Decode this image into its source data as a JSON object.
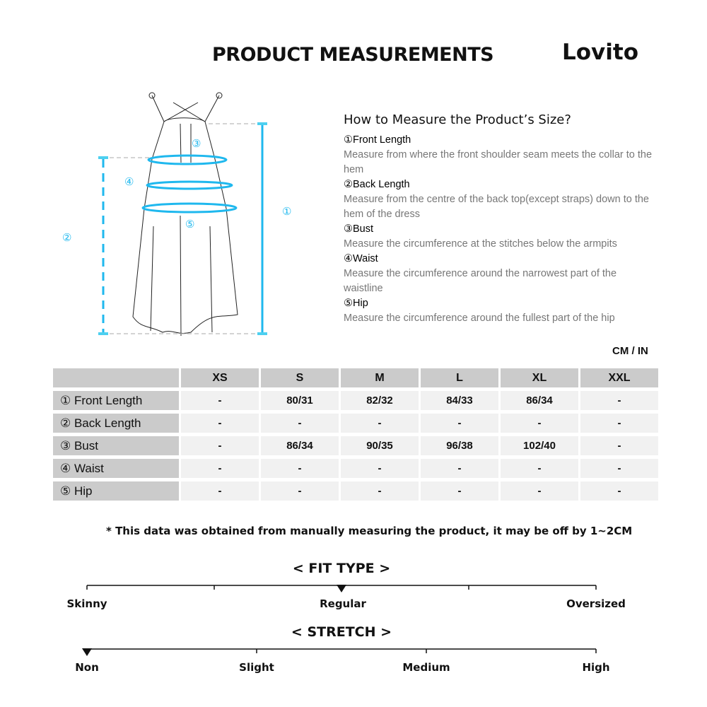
{
  "header": {
    "title": "PRODUCT MEASUREMENTS",
    "logo": "Lovito"
  },
  "diagram": {
    "markers": [
      "①",
      "②",
      "③",
      "④",
      "⑤"
    ],
    "accent": "#1fb8ee"
  },
  "guide": {
    "title": "How to Measure the Product’s Size?",
    "items": [
      {
        "name": "①Front Length",
        "desc": "Measure from where the front shoulder seam meets the collar to the hem"
      },
      {
        "name": "②Back Length",
        "desc": "Measure from the centre of the back top(except straps) down to the hem of the dress"
      },
      {
        "name": "③Bust",
        "desc": "Measure the circumference at the stitches below the armpits"
      },
      {
        "name": "④Waist",
        "desc": "Measure the circumference around the narrowest part of the waistline"
      },
      {
        "name": "⑤Hip",
        "desc": "Measure the circumference around the fullest part of the hip"
      }
    ]
  },
  "table": {
    "unit": "CM / IN",
    "sizes": [
      "XS",
      "S",
      "M",
      "L",
      "XL",
      "XXL"
    ],
    "rows": [
      {
        "label": "① Front Length",
        "values": [
          "-",
          "80/31",
          "82/32",
          "84/33",
          "86/34",
          "-"
        ]
      },
      {
        "label": "② Back Length",
        "values": [
          "-",
          "-",
          "-",
          "-",
          "-",
          "-"
        ]
      },
      {
        "label": "③ Bust",
        "values": [
          "-",
          "86/34",
          "90/35",
          "96/38",
          "102/40",
          "-"
        ]
      },
      {
        "label": "④ Waist",
        "values": [
          "-",
          "-",
          "-",
          "-",
          "-",
          "-"
        ]
      },
      {
        "label": "⑤ Hip",
        "values": [
          "-",
          "-",
          "-",
          "-",
          "-",
          "-"
        ]
      }
    ]
  },
  "note": "* This data was obtained from manually measuring the product, it may be off by 1~2CM",
  "fit": {
    "title": "< FIT TYPE >",
    "labels": [
      "Skinny",
      "Regular",
      "Oversized"
    ],
    "selected": "Regular"
  },
  "stretch": {
    "title": "< STRETCH >",
    "labels": [
      "Non",
      "Slight",
      "Medium",
      "High"
    ],
    "selected": "Non"
  }
}
